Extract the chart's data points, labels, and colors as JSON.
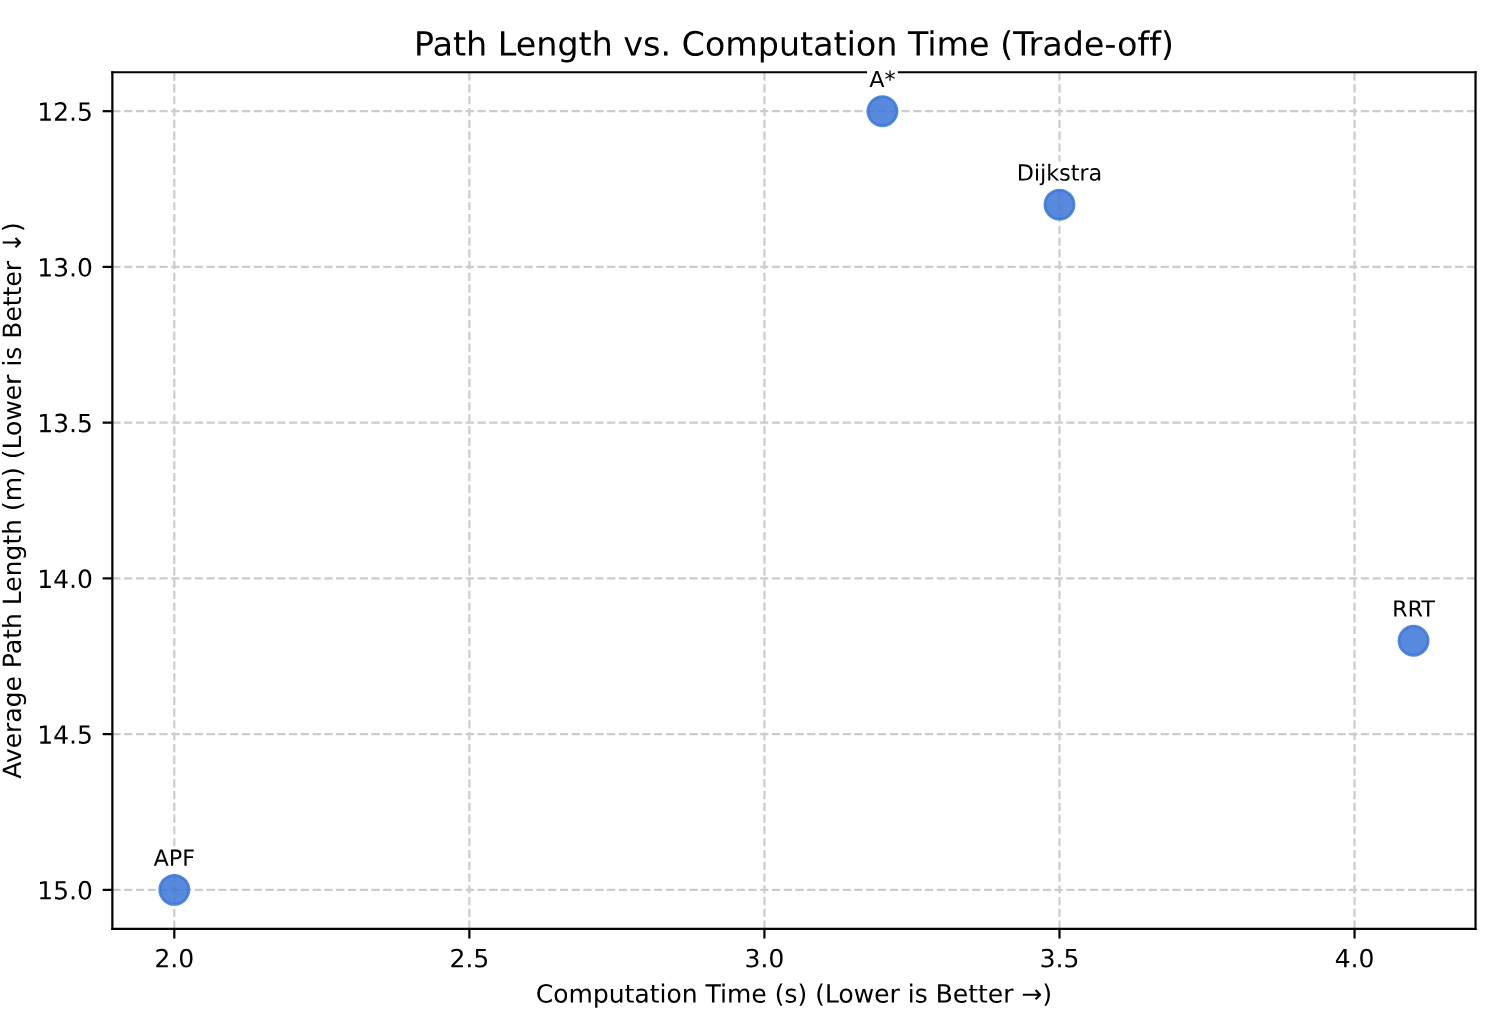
{
  "chart_data": {
    "type": "scatter",
    "title": "Path Length vs. Computation Time (Trade-off)",
    "xlabel": "Computation Time (s) (Lower is Better →)",
    "ylabel": "Average Path Length (m) (Lower is Better ↓)",
    "x": [
      3.2,
      3.5,
      4.1,
      2.0
    ],
    "series": [
      {
        "color": "#3a76d6",
        "values": [
          12.5,
          12.8,
          14.2,
          15.0
        ]
      }
    ],
    "annotations": [
      {
        "text": "A*",
        "x": 3.2,
        "y": 12.5
      },
      {
        "text": "Dijkstra",
        "x": 3.5,
        "y": 12.8
      },
      {
        "text": "RRT",
        "x": 4.1,
        "y": 14.2
      },
      {
        "text": "APF",
        "x": 2.0,
        "y": 15.0
      }
    ],
    "xlim": [
      1.895,
      4.205
    ],
    "xticks": [
      {
        "value": 2.0,
        "label": "2.0"
      },
      2.5,
      {
        "value": 3.0,
        "label": "3.0"
      },
      3.5,
      {
        "value": 4.0,
        "label": "4.0"
      }
    ],
    "ylim": [
      15.125,
      12.375
    ],
    "yticks": [
      12.5,
      {
        "value": 13.0,
        "label": "13.0"
      },
      13.5,
      {
        "value": 14.0,
        "label": "14.0"
      },
      14.5,
      {
        "value": 15.0,
        "label": "15.0"
      }
    ],
    "grid": true,
    "marker": "circle"
  }
}
